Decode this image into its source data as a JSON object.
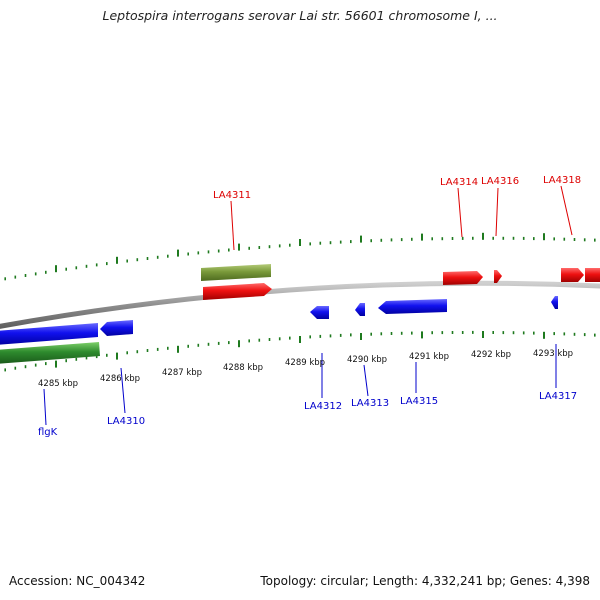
{
  "title": "Leptospira interrogans serovar Lai str. 56601 chromosome I, ...",
  "footer": {
    "accession": "Accession: NC_004342",
    "topology": "Topology: circular; Length: 4,332,241 bp; Genes: 4,398"
  },
  "scale_labels": [
    "4285 kbp",
    "4286 kbp",
    "4287 kbp",
    "4288 kbp",
    "4289 kbp",
    "4290 kbp",
    "4291 kbp",
    "4292 kbp",
    "4293 kbp"
  ],
  "gene_labels_top": [
    "LA4311",
    "LA4314",
    "LA4316",
    "LA4318"
  ],
  "gene_labels_bottom": [
    "flgK",
    "LA4310",
    "LA4312",
    "LA4313",
    "LA4315",
    "LA4317"
  ],
  "colors": {
    "forward_gene": "#ee1111",
    "reverse_gene": "#1111ee",
    "forward_label": "#dd0000",
    "reverse_label": "#0000cc",
    "feature_green": "#3a9a2a",
    "feature_olive": "#7a9a3a",
    "tick_green": "#1f7a1f",
    "backbone": "#8a8a8a"
  }
}
